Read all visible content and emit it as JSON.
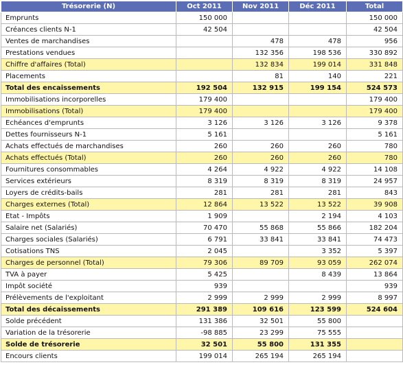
{
  "table": {
    "headers": [
      "Trésorerie (N)",
      "Oct 2011",
      "Nov 2011",
      "Déc 2011",
      "Total"
    ],
    "rows": [
      {
        "label": "Emprunts",
        "oct": "150 000",
        "nov": "",
        "dec": "",
        "total": "150 000",
        "style": "normal"
      },
      {
        "label": "Créances clients N-1",
        "oct": "42 504",
        "nov": "",
        "dec": "",
        "total": "42 504",
        "style": "normal"
      },
      {
        "label": "Ventes de marchandises",
        "oct": "",
        "nov": "478",
        "dec": "478",
        "total": "956",
        "style": "normal"
      },
      {
        "label": "Prestations vendues",
        "oct": "",
        "nov": "132 356",
        "dec": "198 536",
        "total": "330 892",
        "style": "normal"
      },
      {
        "label": "Chiffre d'affaires (Total)",
        "oct": "",
        "nov": "132 834",
        "dec": "199 014",
        "total": "331 848",
        "style": "sub"
      },
      {
        "label": "Placements",
        "oct": "",
        "nov": "81",
        "dec": "140",
        "total": "221",
        "style": "normal"
      },
      {
        "label": "Total des encaissements",
        "oct": "192 504",
        "nov": "132 915",
        "dec": "199 154",
        "total": "524 573",
        "style": "total"
      },
      {
        "label": "Immobilisations incorporelles",
        "oct": "179 400",
        "nov": "",
        "dec": "",
        "total": "179 400",
        "style": "normal"
      },
      {
        "label": "Immobilisations (Total)",
        "oct": "179 400",
        "nov": "",
        "dec": "",
        "total": "179 400",
        "style": "sub"
      },
      {
        "label": "Echéances d'emprunts",
        "oct": "3 126",
        "nov": "3 126",
        "dec": "3 126",
        "total": "9 378",
        "style": "normal"
      },
      {
        "label": "Dettes fournisseurs N-1",
        "oct": "5 161",
        "nov": "",
        "dec": "",
        "total": "5 161",
        "style": "normal"
      },
      {
        "label": "Achats effectués de marchandises",
        "oct": "260",
        "nov": "260",
        "dec": "260",
        "total": "780",
        "style": "normal"
      },
      {
        "label": "Achats effectués (Total)",
        "oct": "260",
        "nov": "260",
        "dec": "260",
        "total": "780",
        "style": "sub"
      },
      {
        "label": "Fournitures consommables",
        "oct": "4 264",
        "nov": "4 922",
        "dec": "4 922",
        "total": "14 108",
        "style": "normal"
      },
      {
        "label": "Services extérieurs",
        "oct": "8 319",
        "nov": "8 319",
        "dec": "8 319",
        "total": "24 957",
        "style": "normal"
      },
      {
        "label": "Loyers de crédits-bails",
        "oct": "281",
        "nov": "281",
        "dec": "281",
        "total": "843",
        "style": "normal"
      },
      {
        "label": "Charges externes (Total)",
        "oct": "12 864",
        "nov": "13 522",
        "dec": "13 522",
        "total": "39 908",
        "style": "sub"
      },
      {
        "label": "Etat - Impôts",
        "oct": "1 909",
        "nov": "",
        "dec": "2 194",
        "total": "4 103",
        "style": "normal"
      },
      {
        "label": "Salaire net (Salariés)",
        "oct": "70 470",
        "nov": "55 868",
        "dec": "55 866",
        "total": "182 204",
        "style": "normal"
      },
      {
        "label": "Charges sociales (Salariés)",
        "oct": "6 791",
        "nov": "33 841",
        "dec": "33 841",
        "total": "74 473",
        "style": "normal"
      },
      {
        "label": "Cotisations TNS",
        "oct": "2 045",
        "nov": "",
        "dec": "3 352",
        "total": "5 397",
        "style": "normal"
      },
      {
        "label": "Charges de personnel (Total)",
        "oct": "79 306",
        "nov": "89 709",
        "dec": "93 059",
        "total": "262 074",
        "style": "sub"
      },
      {
        "label": "TVA à payer",
        "oct": "5 425",
        "nov": "",
        "dec": "8 439",
        "total": "13 864",
        "style": "normal"
      },
      {
        "label": "Impôt société",
        "oct": "939",
        "nov": "",
        "dec": "",
        "total": "939",
        "style": "normal"
      },
      {
        "label": "Prélèvements de l'exploitant",
        "oct": "2 999",
        "nov": "2 999",
        "dec": "2 999",
        "total": "8 997",
        "style": "normal"
      },
      {
        "label": "Total des décaissements",
        "oct": "291 389",
        "nov": "109 616",
        "dec": "123 599",
        "total": "524 604",
        "style": "total"
      },
      {
        "label": "Solde précédent",
        "oct": "131 386",
        "nov": "32 501",
        "dec": "55 800",
        "total": "",
        "style": "normal"
      },
      {
        "label": "Variation de la trésorerie",
        "oct": "-98 885",
        "nov": "23 299",
        "dec": "75 555",
        "total": "",
        "style": "normal"
      },
      {
        "label": "Solde de trésorerie",
        "oct": "32 501",
        "nov": "55 800",
        "dec": "131 355",
        "total": "",
        "style": "total"
      },
      {
        "label": "Encours clients",
        "oct": "199 014",
        "nov": "265 194",
        "dec": "265 194",
        "total": "",
        "style": "normal"
      }
    ]
  }
}
